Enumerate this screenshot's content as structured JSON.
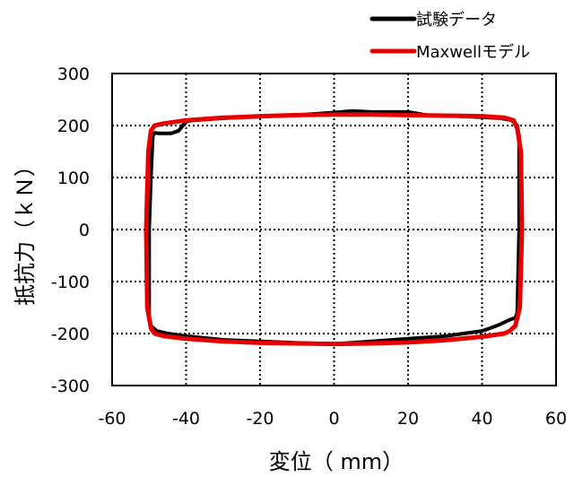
{
  "chart_data": {
    "type": "line",
    "title": "",
    "xlabel": "変位（ mm）",
    "ylabel": "抵抗力（ｋＮ）",
    "xlim": [
      -60,
      60
    ],
    "ylim": [
      -300,
      300
    ],
    "xticks": [
      -60,
      -40,
      -20,
      0,
      20,
      40,
      60
    ],
    "yticks": [
      300,
      200,
      100,
      0,
      -100,
      -200,
      -300
    ],
    "grid": true,
    "legend_position": "top-right",
    "series": [
      {
        "name": "試験データ",
        "color": "#000000",
        "x": [
          -49,
          -48.5,
          -47.5,
          -44,
          -42,
          -40,
          -38,
          -30,
          -20,
          -10,
          0,
          5,
          10,
          20,
          25,
          30,
          40,
          45,
          48,
          49.5,
          50,
          50,
          49.5,
          49,
          48,
          47,
          45,
          42,
          40,
          35,
          30,
          20,
          10,
          0,
          -10,
          -20,
          -30,
          -40,
          -45,
          -48,
          -49.5,
          -50,
          -50,
          -49.5,
          -49
        ],
        "y": [
          180,
          186,
          185,
          185,
          190,
          208,
          210,
          214,
          217,
          220,
          225,
          228,
          226,
          226,
          220,
          219,
          216,
          214,
          210,
          200,
          180,
          0,
          -160,
          -170,
          -172,
          -175,
          -182,
          -190,
          -195,
          -200,
          -205,
          -210,
          -215,
          -220,
          -218,
          -215,
          -212,
          -205,
          -200,
          -195,
          -185,
          -170,
          0,
          100,
          180
        ]
      },
      {
        "name": "Maxwellモデル",
        "color": "#e60000",
        "x": [
          -48.5,
          -46,
          -40,
          -30,
          -20,
          -10,
          0,
          10,
          20,
          30,
          40,
          46,
          48.5,
          49.5,
          50.5,
          50.8,
          50.2,
          49,
          47.5,
          46,
          40,
          30,
          20,
          10,
          0,
          -10,
          -20,
          -30,
          -40,
          -46,
          -48.5,
          -49.5,
          -50.5,
          -50.8,
          -50.2,
          -49.5,
          -48.5
        ],
        "y": [
          200,
          204,
          210,
          215,
          218,
          220,
          221,
          221,
          220,
          219,
          218,
          215,
          210,
          195,
          150,
          0,
          -150,
          -185,
          -195,
          -200,
          -206,
          -213,
          -217,
          -219,
          -220,
          -219,
          -218,
          -215,
          -210,
          -205,
          -200,
          -190,
          -150,
          0,
          150,
          190,
          200
        ]
      }
    ]
  }
}
